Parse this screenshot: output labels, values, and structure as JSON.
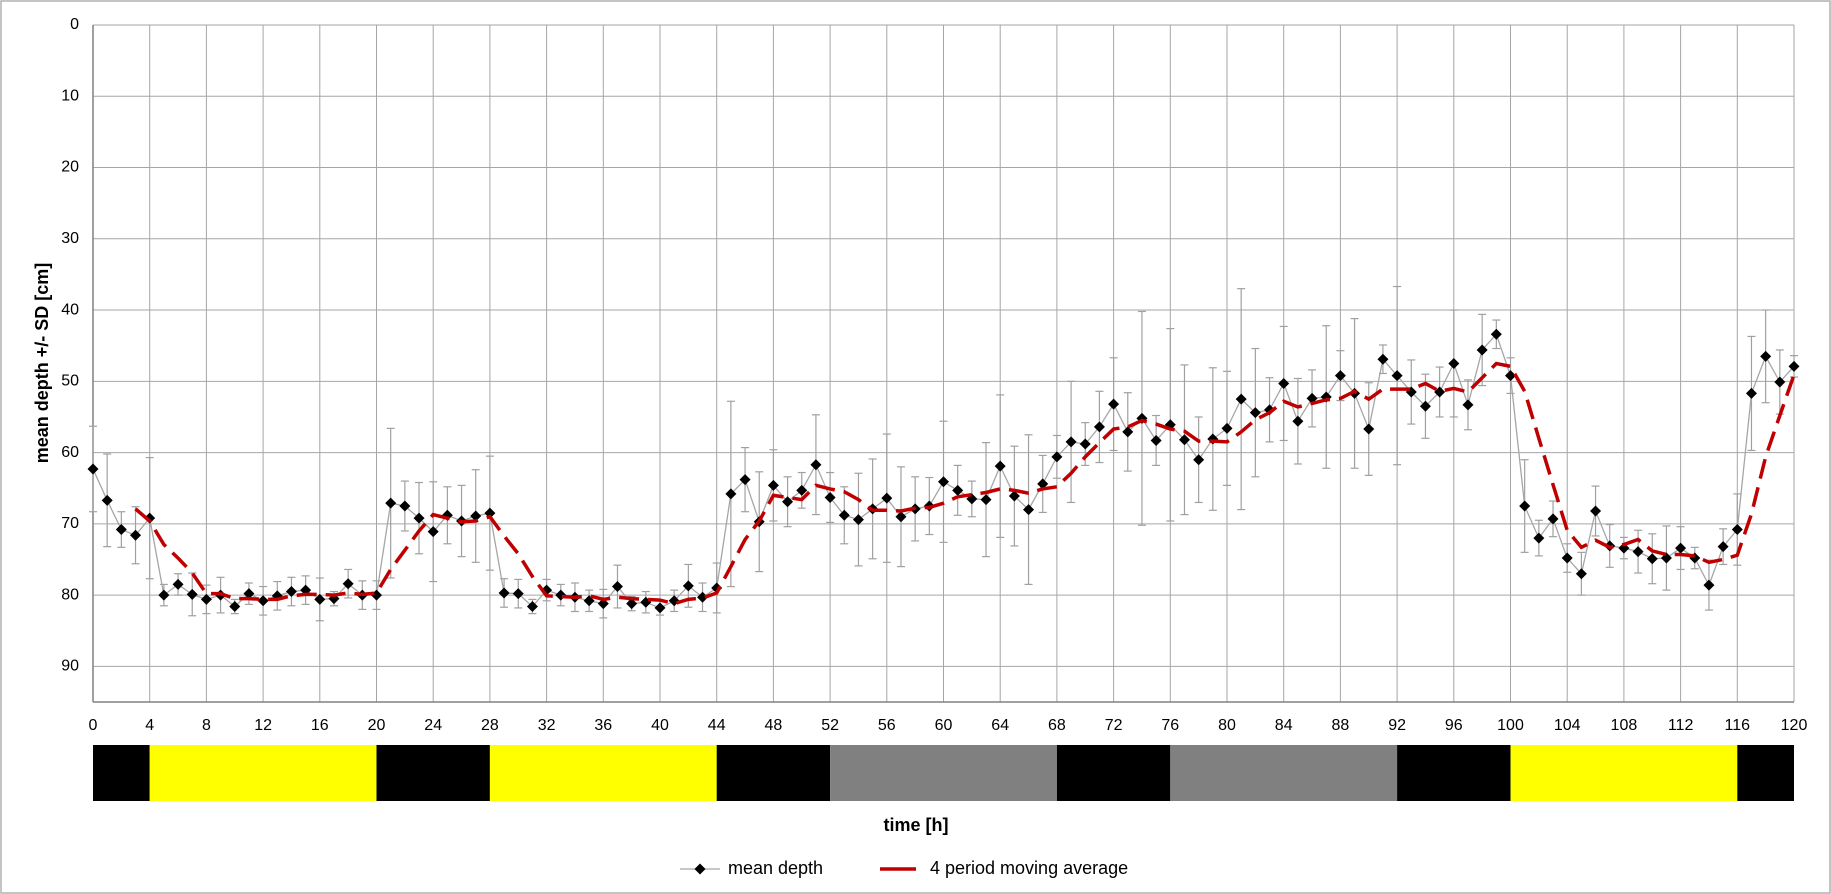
{
  "chart_data": {
    "type": "line",
    "x_label": "time [h]",
    "y_label": "mean depth +/- SD [cm]",
    "x": [
      0,
      1,
      2,
      3,
      4,
      5,
      6,
      7,
      8,
      9,
      10,
      11,
      12,
      13,
      14,
      15,
      16,
      17,
      18,
      19,
      20,
      21,
      22,
      23,
      24,
      25,
      26,
      27,
      28,
      29,
      30,
      31,
      32,
      33,
      34,
      35,
      36,
      37,
      38,
      39,
      40,
      41,
      42,
      43,
      44,
      45,
      46,
      47,
      48,
      49,
      50,
      51,
      52,
      53,
      54,
      55,
      56,
      57,
      58,
      59,
      60,
      61,
      62,
      63,
      64,
      65,
      66,
      67,
      68,
      69,
      70,
      71,
      72,
      73,
      74,
      75,
      76,
      77,
      78,
      79,
      80,
      81,
      82,
      83,
      84,
      85,
      86,
      87,
      88,
      89,
      90,
      91,
      92,
      93,
      94,
      95,
      96,
      97,
      98,
      99,
      100,
      101,
      102,
      103,
      104,
      105,
      106,
      107,
      108,
      109,
      110,
      111,
      112,
      113,
      114,
      115,
      116,
      117,
      118,
      119,
      120
    ],
    "series": [
      {
        "name": "mean depth",
        "color": "#000000",
        "line_color": "#a6a6a6",
        "error_color": "#a0a0a0",
        "values": [
          62.3,
          66.7,
          70.8,
          71.6,
          69.2,
          80,
          78.5,
          79.9,
          80.6,
          80,
          81.6,
          79.8,
          80.8,
          80.1,
          79.5,
          79.3,
          80.6,
          80.5,
          78.4,
          80,
          80,
          67.1,
          67.5,
          69.2,
          71.1,
          68.8,
          69.6,
          68.9,
          68.5,
          79.7,
          79.8,
          81.6,
          79.3,
          80,
          80.3,
          80.8,
          81.2,
          78.8,
          81.2,
          81,
          81.8,
          80.8,
          78.7,
          80.3,
          79,
          65.8,
          63.8,
          69.7,
          64.6,
          66.9,
          65.3,
          61.7,
          66.3,
          68.8,
          69.4,
          67.9,
          66.4,
          69,
          67.9,
          67.5,
          64.1,
          65.3,
          66.5,
          66.6,
          61.9,
          66.1,
          68,
          64.4,
          60.6,
          58.5,
          58.8,
          56.4,
          53.2,
          57.1,
          55.2,
          58.3,
          56.1,
          58.2,
          61,
          58.1,
          56.6,
          52.5,
          54.4,
          54,
          50.3,
          55.6,
          52.4,
          52.2,
          49.2,
          51.7,
          56.7,
          46.9,
          49.2,
          51.5,
          53.5,
          51.5,
          47.5,
          53.3,
          45.6,
          43.4,
          49.2,
          67.5,
          72,
          69.3,
          74.8,
          77,
          68.2,
          73.1,
          73.4,
          73.9,
          74.9,
          74.8,
          73.4,
          74.8,
          78.6,
          73.2,
          70.8,
          51.7,
          46.5,
          50.1,
          47.9
        ],
        "errors": [
          6,
          6.5,
          2.5,
          4,
          8.5,
          1.5,
          1.5,
          3,
          2,
          2.5,
          1,
          1.5,
          2,
          2,
          2,
          2,
          3,
          1,
          2,
          2,
          2,
          10.5,
          3.5,
          5,
          7,
          4,
          5,
          6.5,
          8,
          2,
          2,
          1,
          1.5,
          1.5,
          2,
          1.5,
          2,
          3,
          1,
          1.5,
          1,
          1.5,
          3,
          2,
          3.5,
          13,
          4.5,
          7,
          5,
          3.5,
          2.5,
          7,
          3.5,
          4,
          6.5,
          7,
          9,
          7,
          4.5,
          4,
          8.5,
          3.5,
          2.5,
          8,
          10,
          7,
          10.5,
          4,
          3,
          8.5,
          3,
          5,
          6.5,
          5.5,
          15,
          3.5,
          13.5,
          10.5,
          6,
          10,
          8,
          15.5,
          9,
          4.5,
          8,
          6,
          4,
          10,
          3.5,
          10.5,
          6.5,
          2,
          12.5,
          4.5,
          4.5,
          3.5,
          7.5,
          3.5,
          5,
          2,
          2.5,
          6.5,
          2.5,
          2.5,
          2,
          3,
          3.5,
          3,
          1.5,
          3,
          3.5,
          4.5,
          3,
          1.5,
          3.5,
          2.5,
          5,
          8,
          6.5,
          4.5,
          1.5
        ]
      },
      {
        "name": "4 period moving average",
        "color": "#c00000",
        "dashed": true,
        "values": [
          null,
          null,
          null,
          67.9,
          69.6,
          72.9,
          74.8,
          76.9,
          79.8,
          79.8,
          80.5,
          80.5,
          80.6,
          80.6,
          80.1,
          79.9,
          79.9,
          80.0,
          79.7,
          79.9,
          79.7,
          76.4,
          73.7,
          71.0,
          68.7,
          69.2,
          69.7,
          69.6,
          69.0,
          71.7,
          74.2,
          77.4,
          80.1,
          80.2,
          80.3,
          80.1,
          80.6,
          80.3,
          80.5,
          80.6,
          80.7,
          81.2,
          80.6,
          80.4,
          79.7,
          76.0,
          72.2,
          69.6,
          66.0,
          66.3,
          66.6,
          64.6,
          65.1,
          65.5,
          66.6,
          68.1,
          68.1,
          68.2,
          67.8,
          67.7,
          67.1,
          66.2,
          65.9,
          65.6,
          65.1,
          65.3,
          65.7,
          65.1,
          64.8,
          62.9,
          60.6,
          58.6,
          56.7,
          56.4,
          55.5,
          56.0,
          56.7,
          57.0,
          58.4,
          58.4,
          58.5,
          57.1,
          55.4,
          54.4,
          52.8,
          53.6,
          53.1,
          52.6,
          52.4,
          51.4,
          52.5,
          51.1,
          51.1,
          51.1,
          50.3,
          51.4,
          51.0,
          51.5,
          49.5,
          47.5,
          47.9,
          51.4,
          58.0,
          64.5,
          70.9,
          73.3,
          72.3,
          73.3,
          72.9,
          72.2,
          73.8,
          74.3,
          74.3,
          74.5,
          75.4,
          75.0,
          74.4,
          68.6,
          60.6,
          54.8,
          49.1
        ]
      }
    ],
    "xlim": [
      0,
      120
    ],
    "xticks": [
      0,
      4,
      8,
      12,
      16,
      20,
      24,
      28,
      32,
      36,
      40,
      44,
      48,
      52,
      56,
      60,
      64,
      68,
      72,
      76,
      80,
      84,
      88,
      92,
      96,
      100,
      104,
      108,
      112,
      116,
      120
    ],
    "ylim": [
      0,
      95
    ],
    "y_inverted": true,
    "yticks": [
      0,
      10,
      20,
      30,
      40,
      50,
      60,
      70,
      80,
      90
    ],
    "grid": true,
    "legend": "bottom",
    "light_bar": [
      {
        "start": 0,
        "end": 4,
        "color": "#000000"
      },
      {
        "start": 4,
        "end": 20,
        "color": "#ffff00"
      },
      {
        "start": 20,
        "end": 28,
        "color": "#000000"
      },
      {
        "start": 28,
        "end": 44,
        "color": "#ffff00"
      },
      {
        "start": 44,
        "end": 52,
        "color": "#000000"
      },
      {
        "start": 52,
        "end": 68,
        "color": "#808080"
      },
      {
        "start": 68,
        "end": 76,
        "color": "#000000"
      },
      {
        "start": 76,
        "end": 92,
        "color": "#808080"
      },
      {
        "start": 92,
        "end": 100,
        "color": "#000000"
      },
      {
        "start": 100,
        "end": 116,
        "color": "#ffff00"
      },
      {
        "start": 116,
        "end": 120,
        "color": "#000000"
      }
    ]
  }
}
